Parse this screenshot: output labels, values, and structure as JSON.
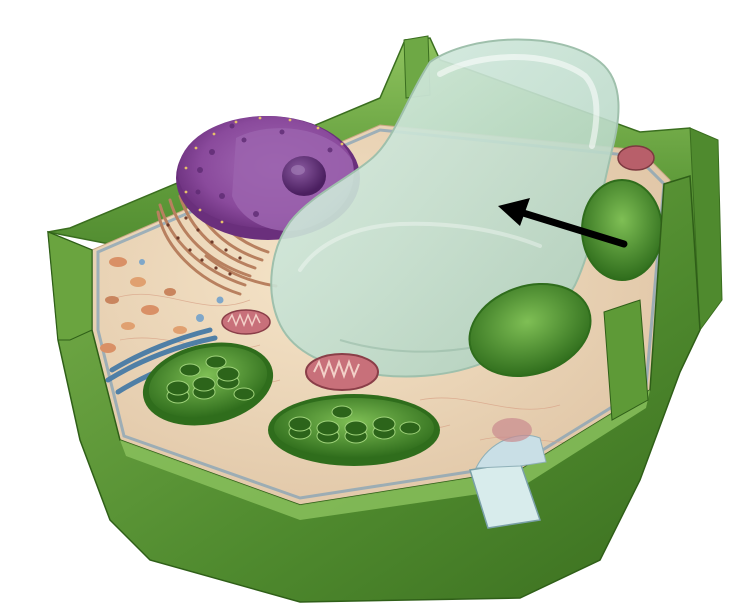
{
  "figure": {
    "subject": "plant-cell",
    "labels": [],
    "pointer": {
      "target": "central-vacuole",
      "style": "black-arrow"
    },
    "colors": {
      "background": "#ffffff",
      "cell_wall": "#5f9b3a",
      "cell_wall_dark": "#3f7a22",
      "cytoplasm": "#eed7b6",
      "nucleus": "#8e4aa0",
      "nucleolus": "#5e2b73",
      "vacuole": "#cfe6d8",
      "chloroplast": "#3f8a2a",
      "mitochondrion": "#c8707a",
      "arrow": "#000000"
    }
  }
}
